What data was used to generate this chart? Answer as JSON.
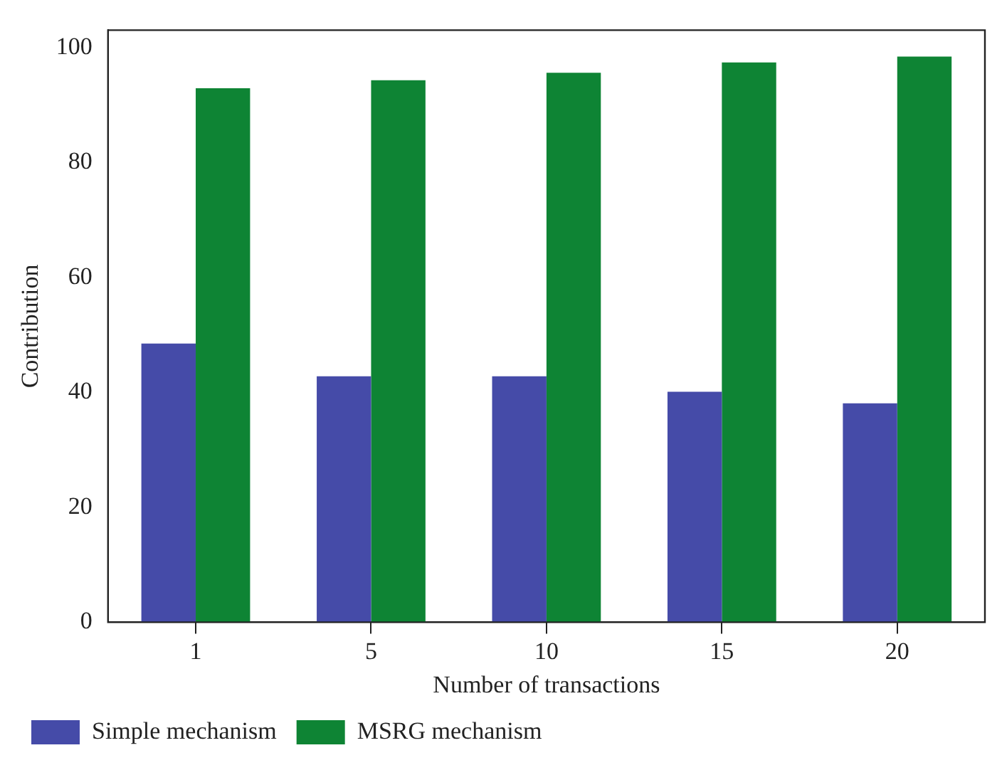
{
  "chart_data": {
    "type": "bar",
    "xlabel": "Number of transactions",
    "ylabel": "Contribution",
    "categories": [
      "1",
      "5",
      "10",
      "15",
      "20"
    ],
    "series": [
      {
        "name": "Simple mechanism",
        "color": "#454ba8",
        "values": [
          48.5,
          42.8,
          42.8,
          40.1,
          38.1
        ]
      },
      {
        "name": "MSRG mechanism",
        "color": "#0e8434",
        "values": [
          92.9,
          94.3,
          95.6,
          97.4,
          98.4
        ]
      }
    ],
    "ylim": [
      0,
      103
    ],
    "yticks": [
      0,
      20,
      40,
      60,
      80,
      100
    ],
    "grid": false,
    "legend": "bottom"
  }
}
